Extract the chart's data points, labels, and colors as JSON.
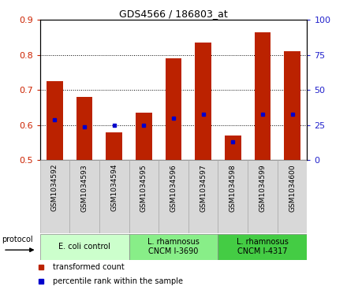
{
  "title": "GDS4566 / 186803_at",
  "samples": [
    "GSM1034592",
    "GSM1034593",
    "GSM1034594",
    "GSM1034595",
    "GSM1034596",
    "GSM1034597",
    "GSM1034598",
    "GSM1034599",
    "GSM1034600"
  ],
  "transformed_count": [
    0.726,
    0.68,
    0.58,
    0.635,
    0.79,
    0.835,
    0.57,
    0.865,
    0.81
  ],
  "percentile_rank": [
    0.615,
    0.595,
    0.6,
    0.6,
    0.62,
    0.632,
    0.552,
    0.63,
    0.632
  ],
  "ylim_left": [
    0.5,
    0.9
  ],
  "ylim_right": [
    0,
    100
  ],
  "yticks_left": [
    0.5,
    0.6,
    0.7,
    0.8,
    0.9
  ],
  "yticks_right": [
    0,
    25,
    50,
    75,
    100
  ],
  "bar_color": "#bb2200",
  "dot_color": "#0000cc",
  "bar_width": 0.55,
  "group_colors": [
    "#ccffcc",
    "#88ee88",
    "#44cc44"
  ],
  "group_labels": [
    "E. coli control",
    "L. rhamnosus\nCNCM I-3690",
    "L. rhamnosus\nCNCM I-4317"
  ],
  "group_ranges": [
    [
      0,
      3
    ],
    [
      3,
      6
    ],
    [
      6,
      9
    ]
  ],
  "legend_labels": [
    "transformed count",
    "percentile rank within the sample"
  ],
  "legend_colors": [
    "#bb2200",
    "#0000cc"
  ],
  "left_tick_color": "#cc2200",
  "right_tick_color": "#2222cc",
  "sample_box_color": "#d8d8d8",
  "protocol_label": "protocol"
}
